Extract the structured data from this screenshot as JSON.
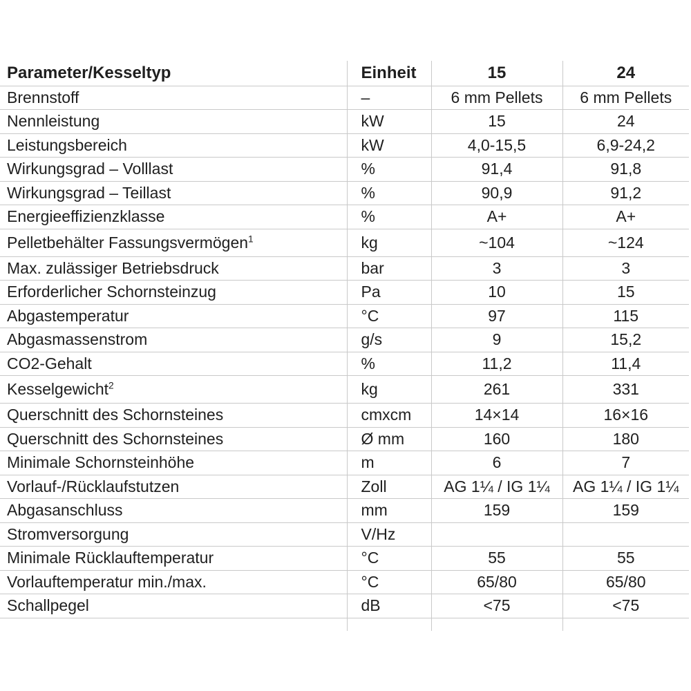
{
  "colors": {
    "grid": "#c9c9c9",
    "text": "#1f1f1f",
    "background": "#ffffff"
  },
  "table": {
    "header": {
      "param": "Parameter/Kesseltyp",
      "unit": "Einheit",
      "col15": "15",
      "col24": "24"
    },
    "rows": [
      {
        "param": "Brennstoff",
        "sup": "",
        "unit": "–",
        "v15": "6 mm Pellets",
        "v24": "6 mm Pellets"
      },
      {
        "param": "Nennleistung",
        "sup": "",
        "unit": "kW",
        "v15": "15",
        "v24": "24"
      },
      {
        "param": "Leistungsbereich",
        "sup": "",
        "unit": "kW",
        "v15": "4,0-15,5",
        "v24": "6,9-24,2"
      },
      {
        "param": "Wirkungsgrad – Volllast",
        "sup": "",
        "unit": "%",
        "v15": "91,4",
        "v24": "91,8"
      },
      {
        "param": "Wirkungsgrad – Teillast",
        "sup": "",
        "unit": "%",
        "v15": "90,9",
        "v24": "91,2"
      },
      {
        "param": "Energieeffizienzklasse",
        "sup": "",
        "unit": "%",
        "v15": "A+",
        "v24": "A+"
      },
      {
        "param": "Pelletbehälter Fassungsvermögen",
        "sup": "1",
        "unit": "kg",
        "v15": "~104",
        "v24": "~124"
      },
      {
        "param": "Max. zulässiger Betriebsdruck",
        "sup": "",
        "unit": "bar",
        "v15": "3",
        "v24": "3"
      },
      {
        "param": "Erforderlicher Schornsteinzug",
        "sup": "",
        "unit": "Pa",
        "v15": "10",
        "v24": "15"
      },
      {
        "param": "Abgastemperatur",
        "sup": "",
        "unit": "°C",
        "v15": "97",
        "v24": "115"
      },
      {
        "param": "Abgasmassenstrom",
        "sup": "",
        "unit": "g/s",
        "v15": "9",
        "v24": "15,2"
      },
      {
        "param": "CO2-Gehalt",
        "sup": "",
        "unit": "%",
        "v15": "11,2",
        "v24": "11,4"
      },
      {
        "param": "Kesselgewicht",
        "sup": "2",
        "unit": "kg",
        "v15": "261",
        "v24": "331"
      },
      {
        "param": "Querschnitt des Schornsteines",
        "sup": "",
        "unit": "cmxcm",
        "v15": "14×14",
        "v24": "16×16"
      },
      {
        "param": "Querschnitt des Schornsteines",
        "sup": "",
        "unit": "Ø mm",
        "v15": "160",
        "v24": "180"
      },
      {
        "param": "Minimale Schornsteinhöhe",
        "sup": "",
        "unit": "m",
        "v15": "6",
        "v24": "7"
      },
      {
        "param": "Vorlauf-/Rücklaufstutzen",
        "sup": "",
        "unit": "Zoll",
        "v15": "AG 1¼ / IG 1¼",
        "v24": "AG 1¼ / IG 1¼"
      },
      {
        "param": "Abgasanschluss",
        "sup": "",
        "unit": "mm",
        "v15": "159",
        "v24": "159"
      },
      {
        "param": "Stromversorgung",
        "sup": "",
        "unit": "V/Hz",
        "v15": "",
        "v24": ""
      },
      {
        "param": "Minimale Rücklauftemperatur",
        "sup": "",
        "unit": "°C",
        "v15": "55",
        "v24": "55"
      },
      {
        "param": "Vorlauftemperatur min./max.",
        "sup": "",
        "unit": "°C",
        "v15": "65/80",
        "v24": "65/80"
      },
      {
        "param": "Schallpegel",
        "sup": "",
        "unit": "dB",
        "v15": "<75",
        "v24": "<75"
      }
    ]
  }
}
